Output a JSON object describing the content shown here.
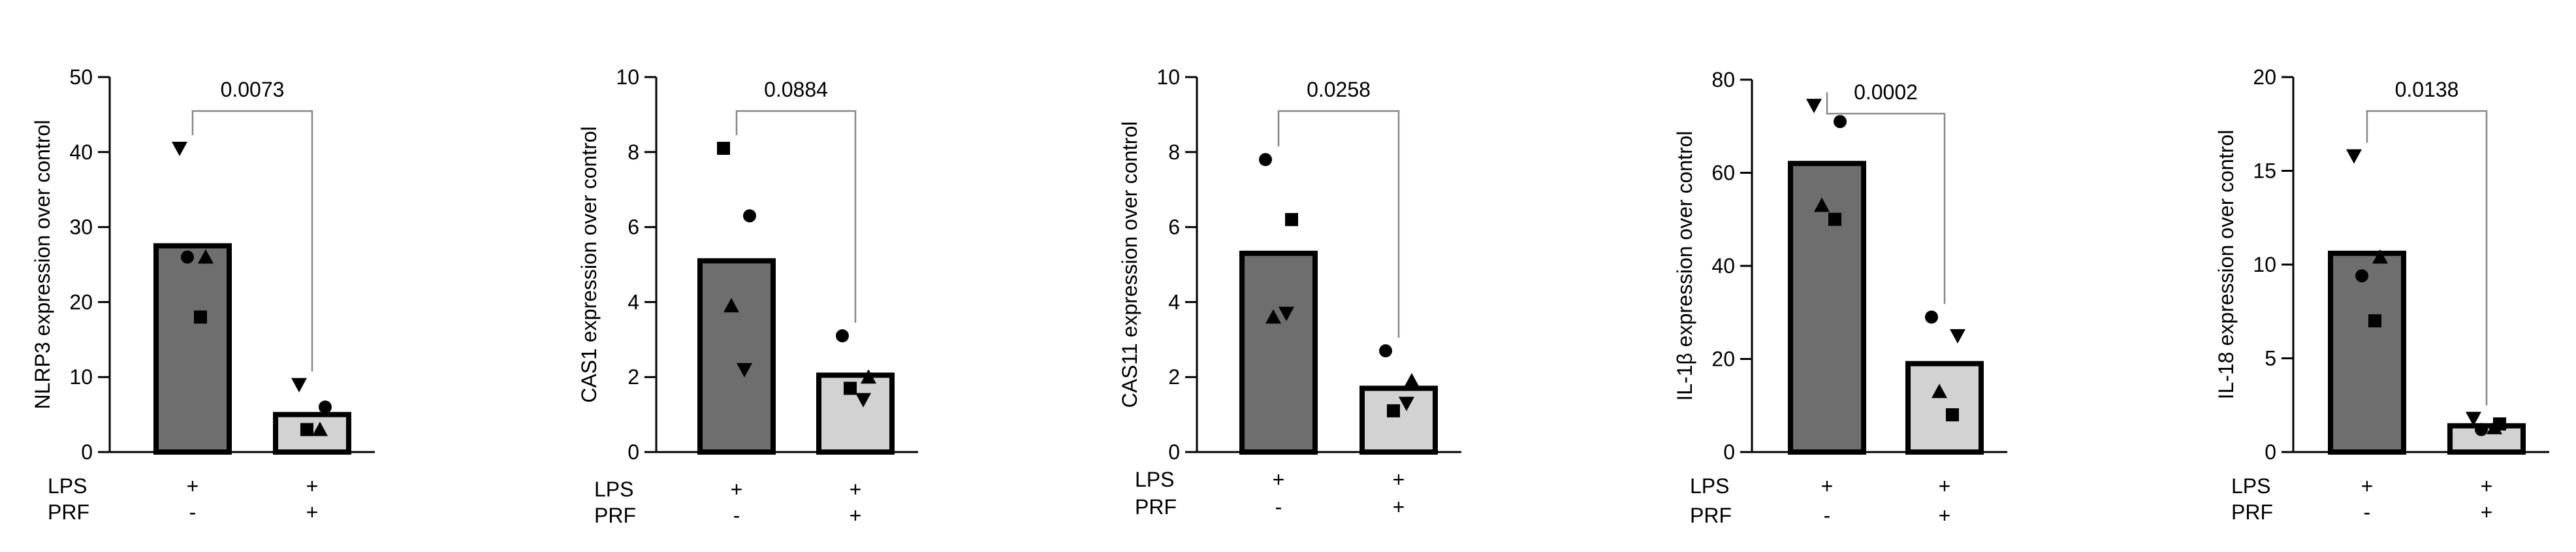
{
  "chart_data": [
    {
      "type": "bar",
      "ylabel": "NLRP3 expression over control",
      "ylim": [
        0,
        50
      ],
      "yticks": [
        0,
        10,
        20,
        30,
        40,
        50
      ],
      "categories": [
        "LPS + PRF -",
        "LPS + PRF +"
      ],
      "values": [
        27.5,
        5
      ],
      "points": [
        [
          {
            "marker": "triangle-down",
            "value": 40.5
          },
          {
            "marker": "triangle",
            "value": 26
          },
          {
            "marker": "circle",
            "value": 26
          },
          {
            "marker": "square",
            "value": 18
          }
        ],
        [
          {
            "marker": "triangle-down",
            "value": 9
          },
          {
            "marker": "circle",
            "value": 6
          },
          {
            "marker": "square",
            "value": 3
          },
          {
            "marker": "triangle",
            "value": 3
          }
        ]
      ],
      "pvalue": "0.0073",
      "conditions": [
        {
          "label": "LPS",
          "marks": [
            "+",
            "+"
          ]
        },
        {
          "label": "PRF",
          "marks": [
            "-",
            "+"
          ]
        }
      ],
      "colors": {
        "bar1": "#6e6e6e",
        "bar2": "#d2d2d2"
      }
    },
    {
      "type": "bar",
      "ylabel": "CAS1 expression over control",
      "ylim": [
        0,
        10
      ],
      "yticks": [
        0,
        2,
        4,
        6,
        8,
        10
      ],
      "categories": [
        "LPS + PRF -",
        "LPS + PRF +"
      ],
      "values": [
        5.1,
        2.05
      ],
      "points": [
        [
          {
            "marker": "square",
            "value": 8.1
          },
          {
            "marker": "circle",
            "value": 6.3
          },
          {
            "marker": "triangle",
            "value": 3.9
          },
          {
            "marker": "triangle-down",
            "value": 2.2
          }
        ],
        [
          {
            "marker": "circle",
            "value": 3.1
          },
          {
            "marker": "triangle",
            "value": 2.0
          },
          {
            "marker": "square",
            "value": 1.7
          },
          {
            "marker": "triangle-down",
            "value": 1.4
          }
        ]
      ],
      "pvalue": "0.0884",
      "conditions": [
        {
          "label": "LPS",
          "marks": [
            "+",
            "+"
          ]
        },
        {
          "label": "PRF",
          "marks": [
            "-",
            "+"
          ]
        }
      ],
      "colors": {
        "bar1": "#6e6e6e",
        "bar2": "#d2d2d2"
      }
    },
    {
      "type": "bar",
      "ylabel": "CAS11 expression over control",
      "ylim": [
        0,
        10
      ],
      "yticks": [
        0,
        2,
        4,
        6,
        8,
        10
      ],
      "categories": [
        "LPS + PRF -",
        "LPS + PRF +"
      ],
      "values": [
        5.3,
        1.7
      ],
      "points": [
        [
          {
            "marker": "circle",
            "value": 7.8
          },
          {
            "marker": "square",
            "value": 6.2
          },
          {
            "marker": "triangle",
            "value": 3.6
          },
          {
            "marker": "triangle-down",
            "value": 3.7
          }
        ],
        [
          {
            "marker": "circle",
            "value": 2.7
          },
          {
            "marker": "triangle",
            "value": 1.9
          },
          {
            "marker": "square",
            "value": 1.1
          },
          {
            "marker": "triangle-down",
            "value": 1.3
          }
        ]
      ],
      "pvalue": "0.0258",
      "conditions": [
        {
          "label": "LPS",
          "marks": [
            "+",
            "+"
          ]
        },
        {
          "label": "PRF",
          "marks": [
            "-",
            "+"
          ]
        }
      ],
      "colors": {
        "bar1": "#6e6e6e",
        "bar2": "#d2d2d2"
      }
    },
    {
      "type": "bar",
      "ylabel": "IL-1β expression over control",
      "ylim": [
        0,
        80
      ],
      "yticks": [
        0,
        20,
        40,
        60,
        80
      ],
      "categories": [
        "LPS + PRF -",
        "LPS + PRF +"
      ],
      "values": [
        62,
        19
      ],
      "points": [
        [
          {
            "marker": "triangle-down",
            "value": 74.5
          },
          {
            "marker": "circle",
            "value": 71
          },
          {
            "marker": "triangle",
            "value": 53
          },
          {
            "marker": "square",
            "value": 50
          }
        ],
        [
          {
            "marker": "circle",
            "value": 29
          },
          {
            "marker": "triangle-down",
            "value": 25
          },
          {
            "marker": "triangle",
            "value": 13
          },
          {
            "marker": "square",
            "value": 8
          }
        ]
      ],
      "pvalue": "0.0002",
      "conditions": [
        {
          "label": "LPS",
          "marks": [
            "+",
            "+"
          ]
        },
        {
          "label": "PRF",
          "marks": [
            "-",
            "+"
          ]
        }
      ],
      "colors": {
        "bar1": "#6e6e6e",
        "bar2": "#d2d2d2"
      }
    },
    {
      "type": "bar",
      "ylabel": "IL-18 expression over control",
      "ylim": [
        0,
        20
      ],
      "yticks": [
        0,
        5,
        10,
        15,
        20
      ],
      "categories": [
        "LPS + PRF -",
        "LPS + PRF +"
      ],
      "values": [
        10.6,
        1.4
      ],
      "points": [
        [
          {
            "marker": "triangle-down",
            "value": 15.8
          },
          {
            "marker": "triangle",
            "value": 10.4
          },
          {
            "marker": "circle",
            "value": 9.4
          },
          {
            "marker": "square",
            "value": 7.0
          }
        ],
        [
          {
            "marker": "triangle-down",
            "value": 1.8
          },
          {
            "marker": "square",
            "value": 1.5
          },
          {
            "marker": "circle",
            "value": 1.2
          },
          {
            "marker": "triangle",
            "value": 1.3
          }
        ]
      ],
      "pvalue": "0.0138",
      "conditions": [
        {
          "label": "LPS",
          "marks": [
            "+",
            "+"
          ]
        },
        {
          "label": "PRF",
          "marks": [
            "-",
            "+"
          ]
        }
      ],
      "colors": {
        "bar1": "#6e6e6e",
        "bar2": "#d2d2d2"
      }
    }
  ]
}
